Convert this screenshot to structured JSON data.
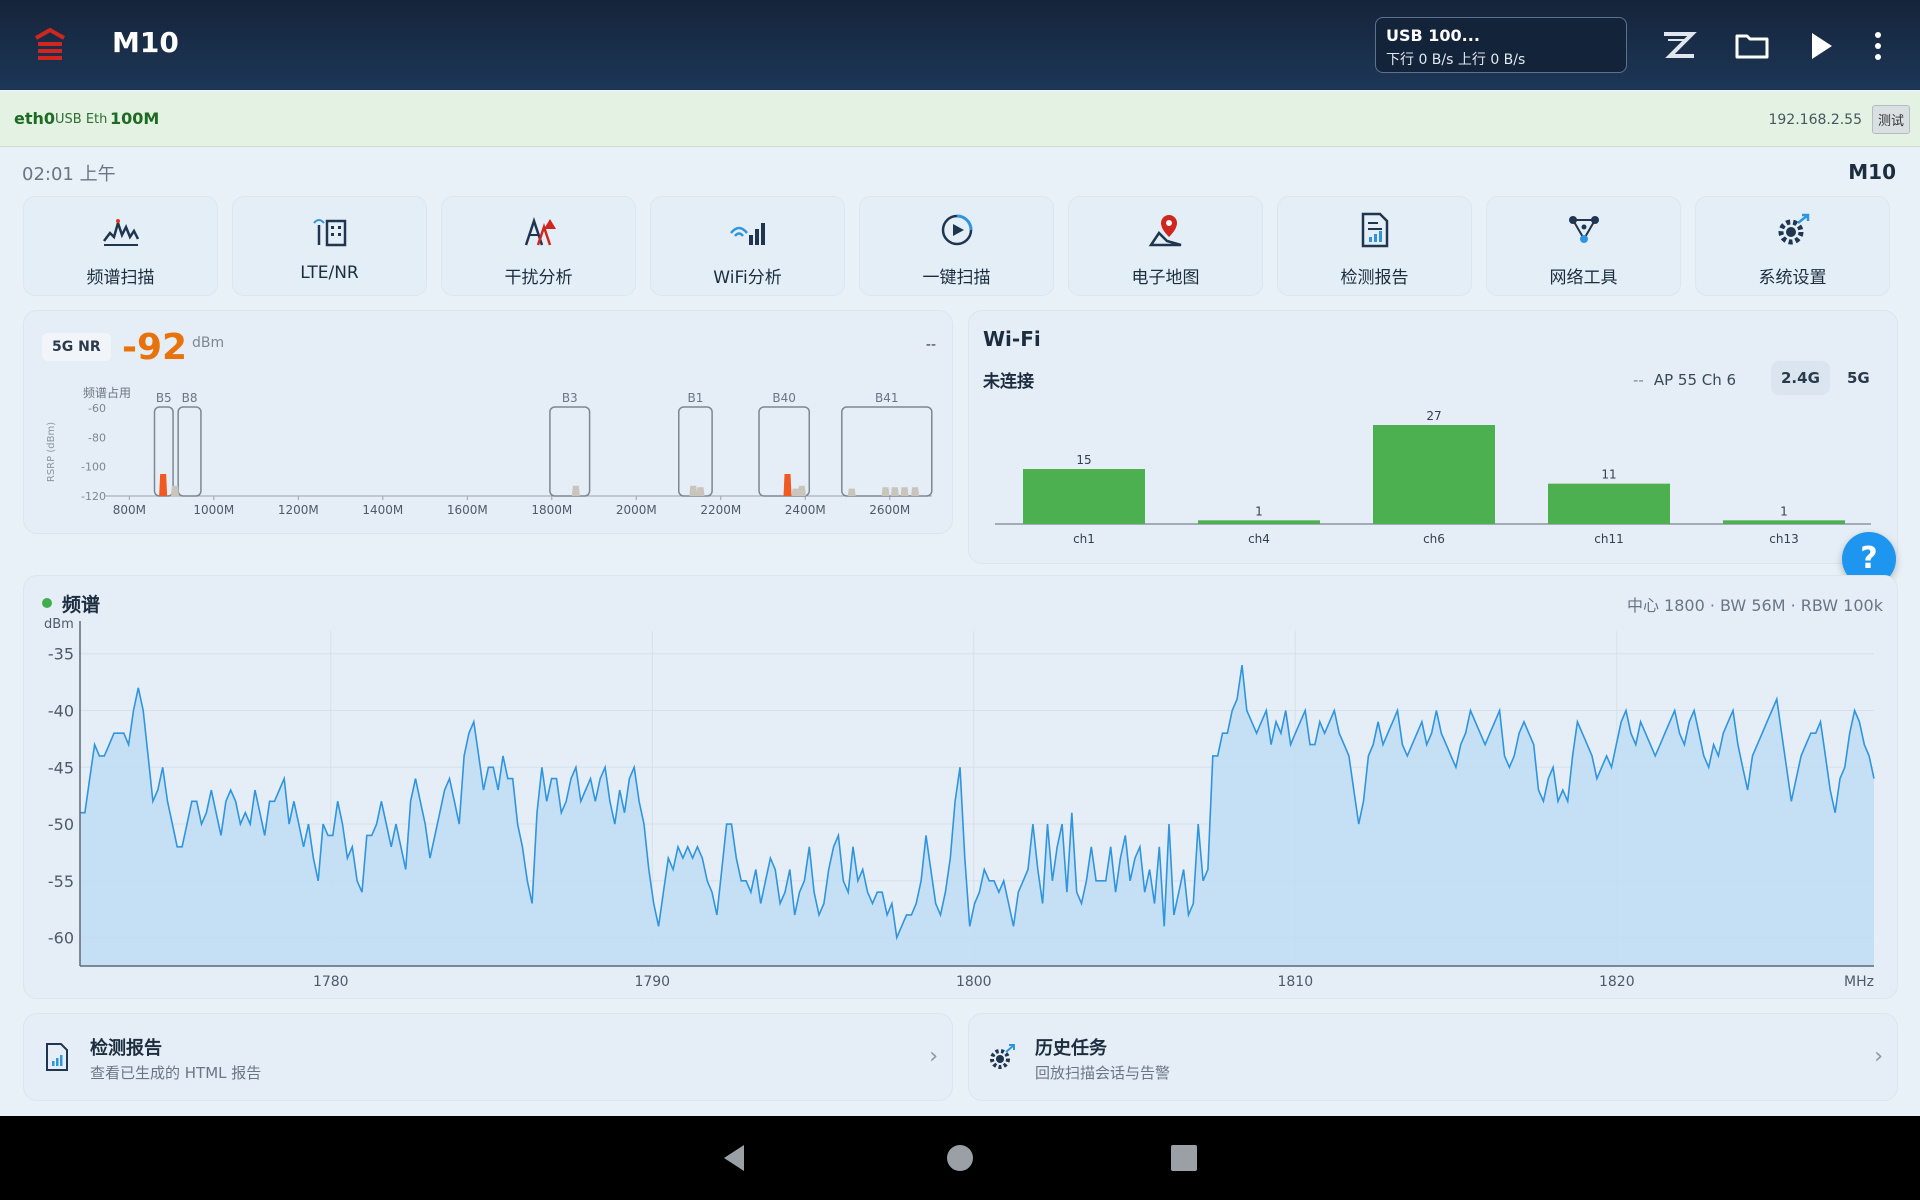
{
  "app": {
    "title": "M10",
    "usb": {
      "line1": "USB 100...",
      "line2": "下行 0 B/s 上行 0 B/s"
    },
    "icons": [
      "logo-icon",
      "z-brand-icon",
      "folder-icon",
      "play-icon",
      "more-vert-icon"
    ]
  },
  "connection": {
    "interface": "eth0",
    "type": "USB Eth",
    "speed": "100M",
    "ip": "192.168.2.55",
    "test_label": "测试",
    "bg_color": "#e3f2e3"
  },
  "status": {
    "time": "02:01 上午",
    "device": "M10"
  },
  "tools": [
    {
      "label": "频谱扫描",
      "icon": "spectrum-icon"
    },
    {
      "label": "LTE/NR",
      "icon": "cell-network-icon"
    },
    {
      "label": "干扰分析",
      "icon": "interference-icon"
    },
    {
      "label": "WiFi分析",
      "icon": "wifi-analysis-icon"
    },
    {
      "label": "一键扫描",
      "icon": "one-click-scan-icon"
    },
    {
      "label": "电子地图",
      "icon": "map-icon"
    },
    {
      "label": "检测报告",
      "icon": "report-icon"
    },
    {
      "label": "网络工具",
      "icon": "network-tools-icon"
    },
    {
      "label": "系统设置",
      "icon": "settings-icon"
    }
  ],
  "nr": {
    "badge": "5G NR",
    "value": "-92",
    "unit": "dBm",
    "dash": "--"
  },
  "wifi": {
    "title": "Wi-Fi",
    "status": "未连接",
    "dash": "--",
    "info": "AP 55  Ch 6",
    "bands": [
      "2.4G",
      "5G"
    ],
    "active_band": "2.4G"
  },
  "spectrum": {
    "title": "频谱",
    "params": "中心 1800 · BW 56M · RBW 100k"
  },
  "links": [
    {
      "title": "检测报告",
      "subtitle": "查看已生成的 HTML 报告",
      "icon": "report-icon"
    },
    {
      "title": "历史任务",
      "subtitle": "回放扫描会话与告警",
      "icon": "history-settings-icon"
    }
  ],
  "chart_data": [
    {
      "type": "bar",
      "title": "频谱占用",
      "ylabel": "RSRP (dBm)",
      "ylim": [
        -120,
        -60
      ],
      "y_ticks": [
        "-60",
        "-80",
        "-100",
        "-120"
      ],
      "x_ticks": [
        "800M",
        "1000M",
        "1200M",
        "1400M",
        "1600M",
        "1800M",
        "2000M",
        "2200M",
        "2400M",
        "2600M"
      ],
      "xlim": [
        740,
        2700
      ],
      "bands": [
        {
          "name": "B5",
          "range": [
            869,
            894
          ]
        },
        {
          "name": "B8",
          "range": [
            925,
            960
          ]
        },
        {
          "name": "B3",
          "range": [
            1805,
            1880
          ]
        },
        {
          "name": "B1",
          "range": [
            2110,
            2170
          ]
        },
        {
          "name": "B40",
          "range": [
            2300,
            2400
          ]
        },
        {
          "name": "B41",
          "range": [
            2496,
            2690
          ]
        }
      ],
      "peaks": [
        {
          "freq": 880,
          "rsrp": -105,
          "color": "#f05a22"
        },
        {
          "freq": 908,
          "rsrp": -113,
          "color": "#c9c4bc"
        },
        {
          "freq": 1857,
          "rsrp": -113,
          "color": "#c9c4bc"
        },
        {
          "freq": 2135,
          "rsrp": -113,
          "color": "#c9c4bc"
        },
        {
          "freq": 2152,
          "rsrp": -114,
          "color": "#c9c4bc"
        },
        {
          "freq": 2358,
          "rsrp": -105,
          "color": "#f05a22"
        },
        {
          "freq": 2377,
          "rsrp": -115,
          "color": "#c9c4bc"
        },
        {
          "freq": 2392,
          "rsrp": -113,
          "color": "#c9c4bc"
        },
        {
          "freq": 2510,
          "rsrp": -115,
          "color": "#c9c4bc"
        },
        {
          "freq": 2590,
          "rsrp": -114,
          "color": "#c9c4bc"
        },
        {
          "freq": 2612,
          "rsrp": -114,
          "color": "#c9c4bc"
        },
        {
          "freq": 2635,
          "rsrp": -114,
          "color": "#c9c4bc"
        },
        {
          "freq": 2660,
          "rsrp": -114,
          "color": "#c9c4bc"
        }
      ]
    },
    {
      "type": "bar",
      "title": "",
      "categories": [
        "ch1",
        "ch4",
        "ch6",
        "ch11",
        "ch13"
      ],
      "values": [
        15,
        1,
        27,
        11,
        1
      ],
      "ylim": [
        0,
        30
      ],
      "color": "#4caf50"
    },
    {
      "type": "area",
      "title": "",
      "ylabel": "dBm",
      "xlabel": "MHz",
      "xlim": [
        1772.2,
        1828.0
      ],
      "ylim": [
        -62.5,
        -33
      ],
      "x_ticks": [
        "1780",
        "1790",
        "1800",
        "1810",
        "1820"
      ],
      "y_ticks": [
        "-35",
        "-40",
        "-45",
        "-50",
        "-55",
        "-60"
      ],
      "color": "#2f95df",
      "fill": "#bfdcf5",
      "values": [
        -49,
        -49,
        -46,
        -43,
        -44,
        -44,
        -43,
        -42,
        -42,
        -42,
        -43,
        -40,
        -38,
        -40,
        -44,
        -48,
        -47,
        -45,
        -48,
        -50,
        -52,
        -52,
        -50,
        -48,
        -48,
        -50,
        -49,
        -47,
        -49,
        -51,
        -48,
        -47,
        -48,
        -50,
        -49,
        -50,
        -47,
        -49,
        -51,
        -48,
        -48,
        -47,
        -46,
        -50,
        -48,
        -50,
        -52,
        -50,
        -53,
        -55,
        -50,
        -51,
        -51,
        -48,
        -50,
        -53,
        -52,
        -55,
        -56,
        -51,
        -51,
        -50,
        -48,
        -50,
        -52,
        -50,
        -52,
        -54,
        -48,
        -46,
        -48,
        -50,
        -53,
        -51,
        -49,
        -47,
        -46,
        -48,
        -50,
        -44,
        -42,
        -41,
        -44,
        -47,
        -45,
        -45,
        -47,
        -44,
        -46,
        -46,
        -50,
        -52,
        -55,
        -57,
        -49,
        -45,
        -48,
        -46,
        -46,
        -49,
        -48,
        -46,
        -45,
        -48,
        -47,
        -46,
        -48,
        -46,
        -45,
        -48,
        -50,
        -47,
        -49,
        -46,
        -45,
        -48,
        -50,
        -54,
        -57,
        -59,
        -56,
        -53,
        -54,
        -52,
        -53,
        -52,
        -53,
        -52,
        -53,
        -55,
        -56,
        -58,
        -54,
        -50,
        -50,
        -53,
        -55,
        -55,
        -56,
        -54,
        -57,
        -55,
        -53,
        -54,
        -57,
        -56,
        -54,
        -58,
        -56,
        -55,
        -52,
        -56,
        -58,
        -57,
        -54,
        -52,
        -51,
        -55,
        -56,
        -52,
        -55,
        -54,
        -56,
        -57,
        -56,
        -56,
        -58,
        -57,
        -60,
        -59,
        -58,
        -58,
        -57,
        -55,
        -51,
        -54,
        -57,
        -58,
        -56,
        -53,
        -48,
        -45,
        -53,
        -59,
        -57,
        -56,
        -54,
        -55,
        -55,
        -56,
        -55,
        -57,
        -59,
        -56,
        -55,
        -54,
        -50,
        -54,
        -57,
        -50,
        -55,
        -52,
        -50,
        -56,
        -49,
        -56,
        -57,
        -55,
        -52,
        -55,
        -55,
        -55,
        -52,
        -56,
        -53,
        -51,
        -55,
        -53,
        -52,
        -56,
        -54,
        -57,
        -52,
        -59,
        -50,
        -58,
        -56,
        -54,
        -58,
        -57,
        -50,
        -55,
        -54,
        -44,
        -44,
        -42,
        -42,
        -40,
        -39,
        -36,
        -40,
        -41,
        -42,
        -41,
        -40,
        -43,
        -41,
        -42,
        -40,
        -43,
        -42,
        -41,
        -40,
        -43,
        -43,
        -41,
        -42,
        -41,
        -40,
        -42,
        -43,
        -44,
        -47,
        -50,
        -48,
        -44,
        -43,
        -41,
        -43,
        -42,
        -41,
        -40,
        -43,
        -44,
        -43,
        -42,
        -41,
        -43,
        -42,
        -40,
        -42,
        -43,
        -44,
        -45,
        -43,
        -42,
        -40,
        -41,
        -42,
        -43,
        -42,
        -41,
        -40,
        -44,
        -45,
        -44,
        -42,
        -41,
        -42,
        -43,
        -47,
        -48,
        -46,
        -45,
        -48,
        -47,
        -48,
        -44,
        -41,
        -42,
        -43,
        -44,
        -46,
        -45,
        -44,
        -45,
        -43,
        -41,
        -40,
        -42,
        -43,
        -41,
        -42,
        -43,
        -44,
        -43,
        -42,
        -41,
        -40,
        -42,
        -43,
        -41,
        -40,
        -42,
        -44,
        -45,
        -43,
        -44,
        -42,
        -41,
        -40,
        -43,
        -45,
        -47,
        -44,
        -43,
        -42,
        -41,
        -40,
        -39,
        -42,
        -45,
        -48,
        -46,
        -44,
        -43,
        -42,
        -42,
        -41,
        -44,
        -47,
        -49,
        -46,
        -45,
        -42,
        -40,
        -41,
        -43,
        -44,
        -46
      ]
    }
  ]
}
